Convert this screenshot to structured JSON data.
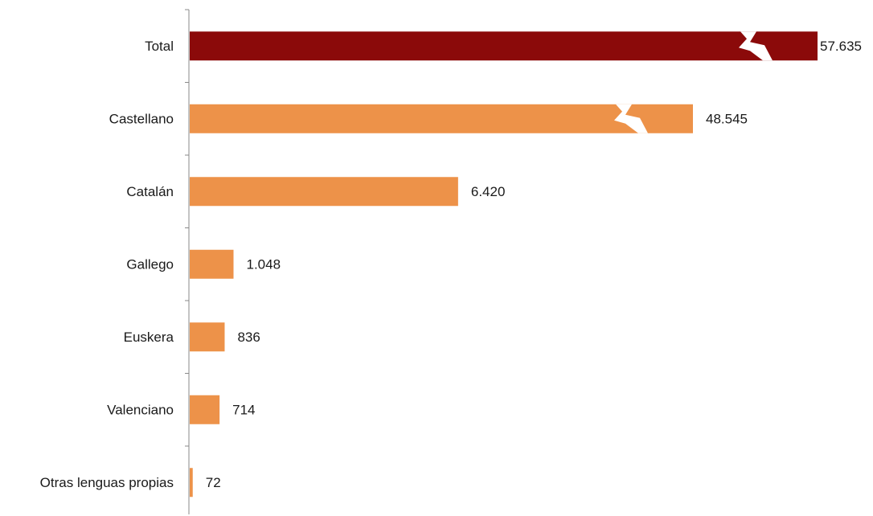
{
  "chart_data": {
    "type": "bar",
    "orientation": "horizontal",
    "categories": [
      "Total",
      "Castellano",
      "Catalán",
      "Gallego",
      "Euskera",
      "Valenciano",
      "Otras lenguas propias"
    ],
    "values": [
      57635,
      48545,
      6420,
      1048,
      836,
      714,
      72
    ],
    "value_labels": [
      "57.635",
      "48.545",
      "6.420",
      "1.048",
      "836",
      "714",
      "72"
    ],
    "axis_breaks": [
      "Total",
      "Castellano"
    ],
    "colors": {
      "total": "#8b0a0a",
      "category": "#ed9249",
      "axis": "#888888",
      "text": "#1a1a1a",
      "break_mark": "#ffffff"
    },
    "title": "",
    "xlabel": "",
    "ylabel": "",
    "grid": false,
    "legend": "none"
  }
}
